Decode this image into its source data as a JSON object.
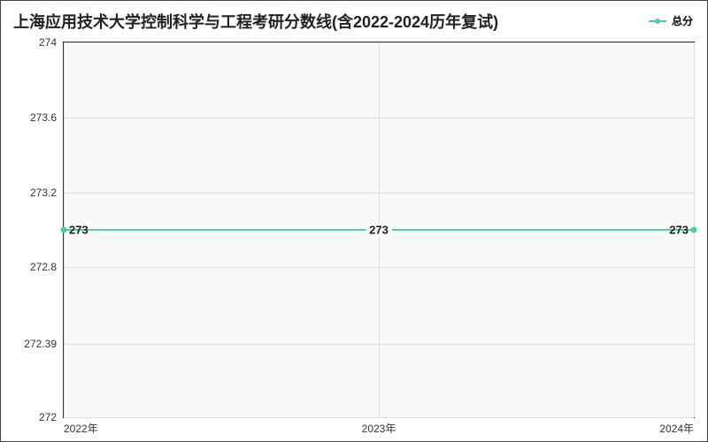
{
  "chart": {
    "type": "line",
    "title": "上海应用技术大学控制科学与工程考研分数线(含2022-2024历年复试)",
    "title_fontsize": 18,
    "title_color": "#222222",
    "legend": {
      "label": "总分",
      "color": "#54c9a8",
      "fontsize": 12,
      "position": "top-right"
    },
    "background_color": "#ffffff",
    "plot_background_color": "#f7faf7",
    "grid_color": "#dddddd",
    "axis_color": "#333333",
    "label_color": "#333333",
    "x": {
      "categories": [
        "2022年",
        "2023年",
        "2024年"
      ],
      "fontsize": 12
    },
    "y": {
      "min": 272,
      "max": 274,
      "ticks": [
        272,
        272.39,
        272.8,
        273.2,
        273.6,
        274
      ],
      "tick_labels": [
        "272",
        "272.39",
        "272.8",
        "273.2",
        "273.6",
        "274"
      ],
      "fontsize": 12
    },
    "series": {
      "name": "总分",
      "values": [
        273,
        273,
        273
      ],
      "line_color": "#54c9a8",
      "line_width": 2,
      "marker_color": "#54c9a8",
      "marker_size": 7,
      "point_labels": [
        "273",
        "273",
        "273"
      ],
      "point_label_fontsize": 13,
      "point_label_color": "#222222"
    }
  }
}
